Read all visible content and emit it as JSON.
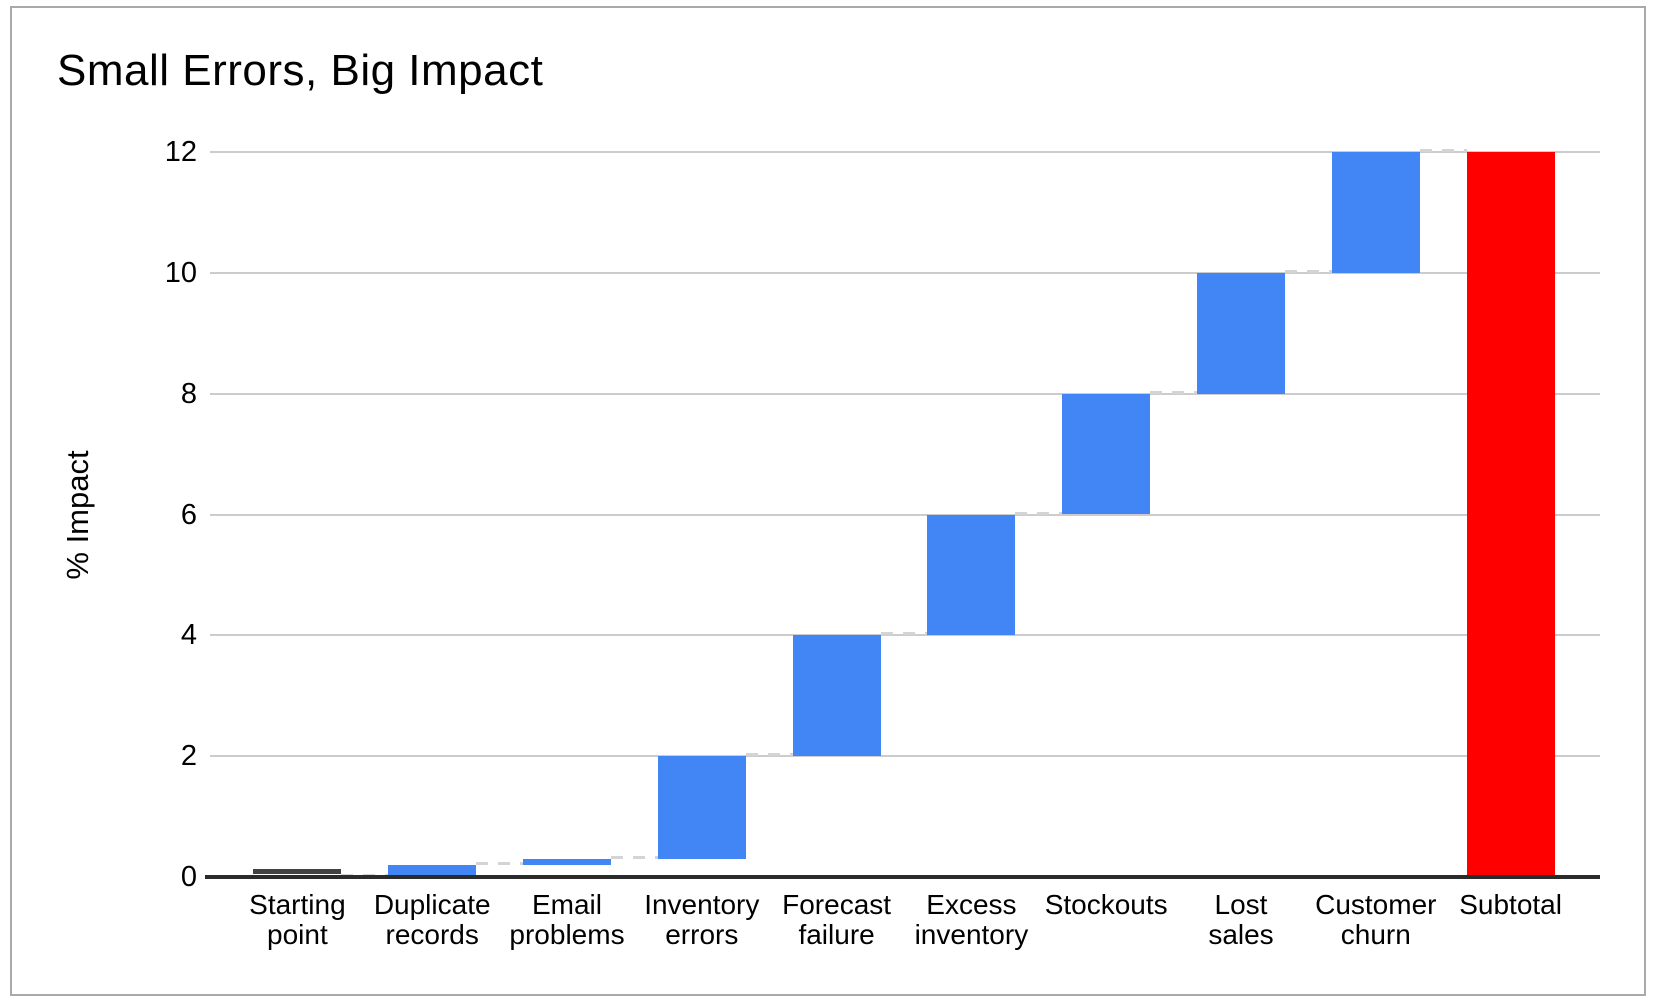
{
  "title": "Small Errors, Big Impact",
  "chart_data": {
    "type": "bar",
    "subtype": "waterfall",
    "title": "Small Errors, Big Impact",
    "xlabel": "",
    "ylabel": "% Impact",
    "ylim": [
      0,
      12
    ],
    "yticks": [
      0,
      2,
      4,
      6,
      8,
      10,
      12
    ],
    "grid": true,
    "legend": "none",
    "categories": [
      "Starting point",
      "Duplicate records",
      "Email problems",
      "Inventory errors",
      "Forecast failure",
      "Excess inventory",
      "Stockouts",
      "Lost sales",
      "Customer churn",
      "Subtotal"
    ],
    "bars": [
      {
        "label": "Starting point",
        "lines": [
          "Starting",
          "point"
        ],
        "delta": 0,
        "start": 0,
        "end": 0,
        "role": "start"
      },
      {
        "label": "Duplicate records",
        "lines": [
          "Duplicate",
          "records"
        ],
        "delta": 0.2,
        "start": 0,
        "end": 0.2,
        "role": "increase"
      },
      {
        "label": "Email problems",
        "lines": [
          "Email",
          "problems"
        ],
        "delta": 0.1,
        "start": 0.2,
        "end": 0.3,
        "role": "increase"
      },
      {
        "label": "Inventory errors",
        "lines": [
          "Inventory",
          "errors"
        ],
        "delta": 1.7,
        "start": 0.3,
        "end": 2,
        "role": "increase"
      },
      {
        "label": "Forecast failure",
        "lines": [
          "Forecast",
          "failure"
        ],
        "delta": 2,
        "start": 2,
        "end": 4,
        "role": "increase"
      },
      {
        "label": "Excess inventory",
        "lines": [
          "Excess",
          "inventory"
        ],
        "delta": 2,
        "start": 4,
        "end": 6,
        "role": "increase"
      },
      {
        "label": "Stockouts",
        "lines": [
          "Stockouts"
        ],
        "delta": 2,
        "start": 6,
        "end": 8,
        "role": "increase"
      },
      {
        "label": "Lost sales",
        "lines": [
          "Lost",
          "sales"
        ],
        "delta": 2,
        "start": 8,
        "end": 10,
        "role": "increase"
      },
      {
        "label": "Customer churn",
        "lines": [
          "Customer",
          "churn"
        ],
        "delta": 2,
        "start": 10,
        "end": 12,
        "role": "increase"
      },
      {
        "label": "Subtotal",
        "lines": [
          "Subtotal"
        ],
        "delta": 12,
        "start": 0,
        "end": 12,
        "role": "subtotal"
      }
    ],
    "colors": {
      "increase": "#4285F4",
      "subtotal": "#FE0000",
      "start_bar": "#424242",
      "gridline": "#CCCCCC",
      "axis": "#2B2B2B",
      "connector": "#D4D4D4"
    }
  }
}
